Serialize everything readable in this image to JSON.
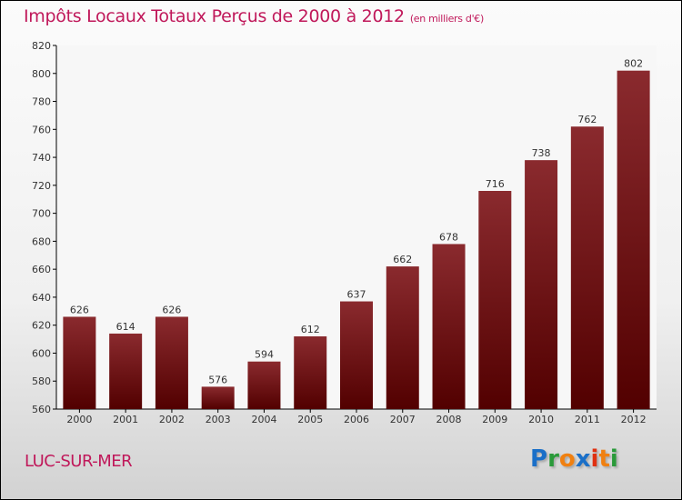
{
  "chart_data": {
    "type": "bar",
    "title": "Impôts Locaux Totaux Perçus de 2000 à 2012",
    "subtitle": "(en milliers d'€)",
    "categories": [
      "2000",
      "2001",
      "2002",
      "2003",
      "2004",
      "2005",
      "2006",
      "2007",
      "2008",
      "2009",
      "2010",
      "2011",
      "2012"
    ],
    "values": [
      626,
      614,
      626,
      576,
      594,
      612,
      637,
      662,
      678,
      716,
      738,
      762,
      802
    ],
    "ylim": [
      560,
      820
    ],
    "yticks": [
      560,
      580,
      600,
      620,
      640,
      660,
      680,
      700,
      720,
      740,
      760,
      780,
      800,
      820
    ],
    "grid": false,
    "bar_color": "#7a1a1e"
  },
  "city": "LUC-SUR-MER",
  "logo": {
    "letters": [
      "P",
      "r",
      "o",
      "x",
      "i",
      "t",
      "i"
    ],
    "colors": [
      "#1a6fc8",
      "#2a9a3a",
      "#f08010",
      "#1a6fc8",
      "#e03010",
      "#f08010",
      "#2a9a3a"
    ]
  }
}
